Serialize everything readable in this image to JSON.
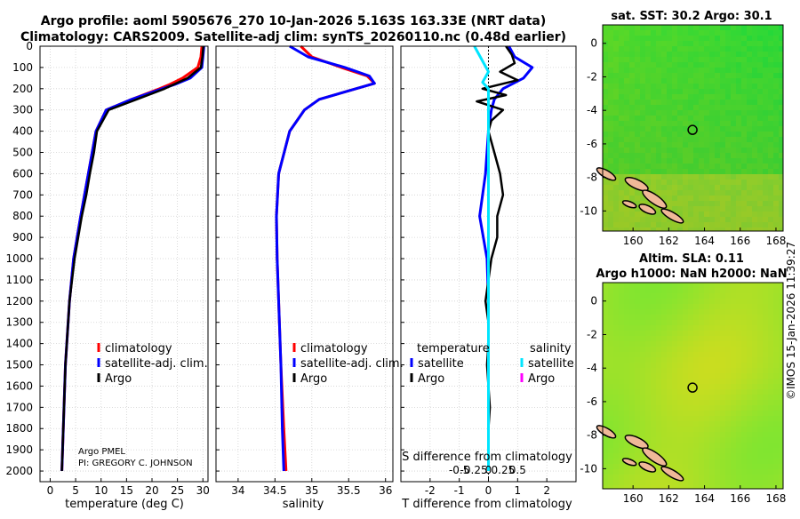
{
  "header": {
    "line1": "Argo profile: aoml 5905676_270 10-Jan-2026 5.163S 163.33E (NRT data)",
    "line2": "Climatology: CARS2009. Satellite-adj clim: synTS_20260110.nc (0.48d earlier)"
  },
  "depth_ticks": [
    0,
    100,
    200,
    300,
    400,
    500,
    600,
    700,
    800,
    900,
    1000,
    1100,
    1200,
    1300,
    1400,
    1500,
    1600,
    1700,
    1800,
    1900,
    2000
  ],
  "colors": {
    "climatology": "#ff0000",
    "satellite_clim": "#0000ff",
    "argo": "#000000",
    "sat_diff": "#00e5ff",
    "argo_sal_diff": "#ff00ff"
  },
  "chart_data": [
    {
      "type": "line",
      "title": "",
      "xlabel": "temperature (deg C)",
      "ylabel": "",
      "xlim": [
        -2,
        31
      ],
      "ylim": [
        2050,
        0
      ],
      "xticks": [
        0,
        5,
        10,
        15,
        20,
        25,
        30
      ],
      "legend": [
        "climatology",
        "satellite-adj. clim.",
        "Argo"
      ],
      "annotation": [
        "Argo PMEL",
        "PI: GREGORY C. JOHNSON"
      ],
      "series": [
        {
          "name": "climatology",
          "depth": [
            0,
            50,
            100,
            150,
            180,
            200,
            250,
            300,
            400,
            600,
            800,
            1000,
            1200,
            1500,
            2000
          ],
          "values": [
            29.8,
            29.6,
            29.0,
            26.0,
            23.5,
            21.5,
            16.0,
            11.0,
            9.0,
            7.5,
            6.0,
            4.6,
            3.8,
            3.0,
            2.3
          ]
        },
        {
          "name": "satellite-adj. clim.",
          "depth": [
            0,
            50,
            100,
            150,
            180,
            200,
            250,
            300,
            400,
            600,
            800,
            1000,
            1200,
            1500,
            2000
          ],
          "values": [
            30.2,
            30.0,
            29.8,
            27.5,
            24.5,
            22.0,
            16.0,
            11.0,
            9.0,
            7.5,
            6.0,
            4.6,
            3.8,
            3.0,
            2.3
          ]
        },
        {
          "name": "Argo",
          "depth": [
            0,
            50,
            100,
            150,
            200,
            250,
            300,
            400,
            500,
            600,
            700,
            800,
            1000,
            1200,
            1500,
            2000
          ],
          "values": [
            30.1,
            29.9,
            29.6,
            27.0,
            22.5,
            17.0,
            11.5,
            9.2,
            8.6,
            7.8,
            7.1,
            6.2,
            4.8,
            3.8,
            3.0,
            2.3
          ]
        }
      ]
    },
    {
      "type": "line",
      "title": "",
      "xlabel": "salinity",
      "ylabel": "",
      "xlim": [
        33.7,
        36.1
      ],
      "ylim": [
        2050,
        0
      ],
      "xticks": [
        34,
        34.5,
        35,
        35.5,
        36
      ],
      "legend": [
        "climatology",
        "satellite-adj. clim.",
        "Argo"
      ],
      "series": [
        {
          "name": "climatology",
          "depth": [
            0,
            50,
            100,
            140,
            175,
            200,
            250,
            300,
            400,
            600,
            800,
            1000,
            1500,
            1800,
            2000
          ],
          "values": [
            34.85,
            35.0,
            35.4,
            35.75,
            35.85,
            35.6,
            35.1,
            34.9,
            34.7,
            34.55,
            34.52,
            34.53,
            34.58,
            34.62,
            34.65
          ]
        },
        {
          "name": "satellite-adj. clim.",
          "depth": [
            0,
            50,
            100,
            140,
            175,
            200,
            250,
            300,
            400,
            600,
            800,
            1000,
            1500,
            1800,
            2000
          ],
          "values": [
            34.7,
            34.95,
            35.45,
            35.78,
            35.85,
            35.6,
            35.1,
            34.9,
            34.7,
            34.55,
            34.52,
            34.53,
            34.58,
            34.6,
            34.62
          ]
        },
        {
          "name": "Argo",
          "depth": [],
          "values": []
        }
      ]
    },
    {
      "type": "line",
      "title": "",
      "xlabel": "T difference from climatology",
      "xlabel2": "S difference from climatology",
      "xlim": [
        -3,
        3
      ],
      "ylim": [
        2050,
        0
      ],
      "xticks": [
        -2,
        -1,
        0,
        1,
        2
      ],
      "xticks2": [
        "-0.5",
        "-0.25",
        "0",
        "0.25",
        "0.5"
      ],
      "legend_left": [
        "temperature",
        "satellite",
        "Argo"
      ],
      "legend_right": [
        "salinity",
        "satellite",
        "Argo"
      ],
      "series": [
        {
          "name": "temperature satellite",
          "depth": [
            0,
            50,
            100,
            150,
            200,
            250,
            300,
            400,
            600,
            800,
            1000,
            1200,
            1500,
            2000
          ],
          "values": [
            0.7,
            0.9,
            1.5,
            1.2,
            0.5,
            0.2,
            0.1,
            0.0,
            -0.1,
            -0.3,
            -0.05,
            0.0,
            0.0,
            0.0
          ]
        },
        {
          "name": "temperature Argo",
          "depth": [
            0,
            40,
            80,
            120,
            160,
            200,
            230,
            260,
            300,
            350,
            400,
            500,
            600,
            700,
            800,
            900,
            1000,
            1100,
            1200,
            1300,
            1400,
            1500,
            1600,
            1700,
            1800,
            1900,
            2000
          ],
          "values": [
            0.6,
            0.8,
            0.9,
            0.4,
            1.0,
            -0.2,
            0.6,
            -0.4,
            0.5,
            0.1,
            0.0,
            0.2,
            0.4,
            0.5,
            0.3,
            0.3,
            0.1,
            0.0,
            -0.1,
            0.0,
            0.0,
            -0.05,
            0.0,
            0.05,
            0.0,
            0.0,
            0.0
          ]
        },
        {
          "name": "salinity satellite",
          "depth": [
            0,
            40,
            80,
            120,
            170,
            200,
            250,
            300,
            400,
            600,
            1000,
            1500,
            2000
          ],
          "values": [
            -0.12,
            -0.08,
            -0.04,
            0.0,
            -0.05,
            0.0,
            0.0,
            0.0,
            0.0,
            0.0,
            0.0,
            0.0,
            0.0
          ]
        },
        {
          "name": "salinity Argo",
          "depth": [],
          "values": []
        }
      ]
    },
    {
      "type": "heatmap",
      "title": "sat. SST: 30.2 Argo: 30.1",
      "xticks": [
        160,
        162,
        164,
        166,
        168
      ],
      "yticks": [
        0,
        -2,
        -4,
        -6,
        -8,
        -10
      ],
      "xlim": [
        158.3,
        168.4
      ],
      "ylim": [
        -11.2,
        1.1
      ],
      "marker": {
        "lon": 163.33,
        "lat": -5.163
      }
    },
    {
      "type": "heatmap",
      "title": "Altim. SLA: 0.11",
      "title2": "Argo h1000: NaN h2000: NaN",
      "xticks": [
        160,
        162,
        164,
        166,
        168
      ],
      "yticks": [
        0,
        -2,
        -4,
        -6,
        -8,
        -10
      ],
      "xlim": [
        158.3,
        168.4
      ],
      "ylim": [
        -11.2,
        1.1
      ],
      "marker": {
        "lon": 163.33,
        "lat": -5.163
      }
    }
  ],
  "credit": "©IMOS 15-Jan-2026 11:39:27"
}
